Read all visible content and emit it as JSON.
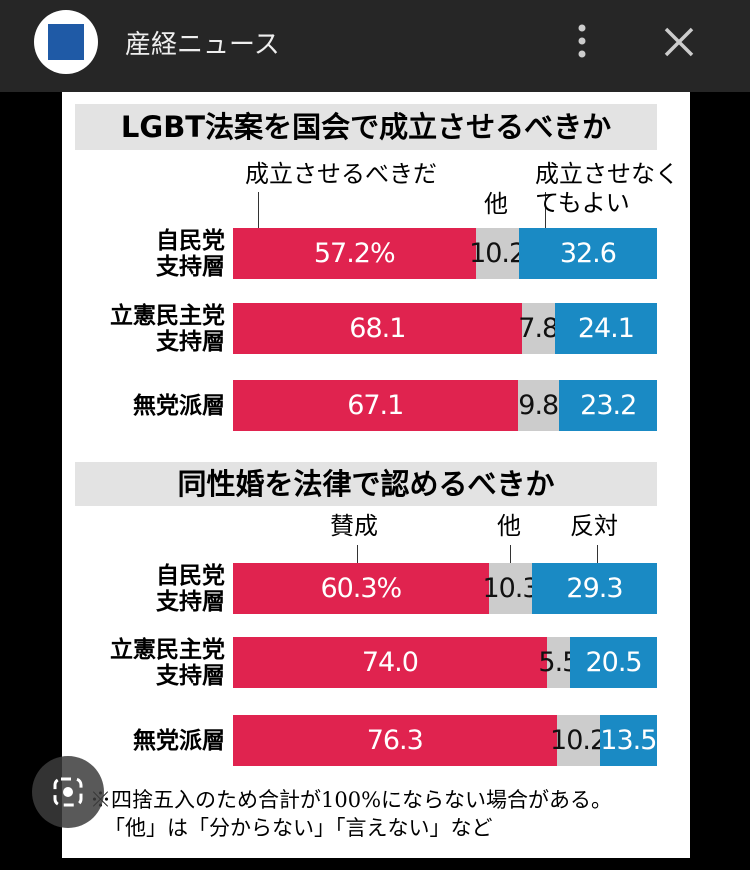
{
  "header": {
    "title": "産経ニュース"
  },
  "chart_data": [
    {
      "type": "stacked-bar",
      "title": "LGBT法案を国会で成立させるべきか",
      "categories": [
        "自民党\n支持層",
        "立憲民主党\n支持層",
        "無党派層"
      ],
      "xlim": [
        0,
        100
      ],
      "series": [
        {
          "name": "成立させるべきだ",
          "color": "#e0234f",
          "values": [
            57.2,
            68.1,
            67.1
          ],
          "value_labels": [
            "57.2%",
            "68.1",
            "67.1"
          ]
        },
        {
          "name": "他",
          "color": "#cccccc",
          "values": [
            10.2,
            7.8,
            9.8
          ]
        },
        {
          "name": "成立させなく\nてもよい",
          "color": "#1a8ac4",
          "values": [
            32.6,
            24.1,
            23.2
          ]
        }
      ]
    },
    {
      "type": "stacked-bar",
      "title": "同性婚を法律で認めるべきか",
      "categories": [
        "自民党\n支持層",
        "立憲民主党\n支持層",
        "無党派層"
      ],
      "xlim": [
        0,
        100
      ],
      "series": [
        {
          "name": "賛成",
          "color": "#e0234f",
          "values": [
            60.3,
            74.0,
            76.3
          ],
          "value_labels": [
            "60.3%",
            "74.0",
            "76.3"
          ]
        },
        {
          "name": "他",
          "color": "#cccccc",
          "values": [
            10.3,
            5.5,
            10.2
          ]
        },
        {
          "name": "反対",
          "color": "#1a8ac4",
          "values": [
            29.3,
            20.5,
            13.5
          ]
        }
      ]
    }
  ],
  "footnote": [
    "※四捨五入のため合計が100%にならない場合がある。",
    "「他」は「分からない」「言えない」など"
  ]
}
